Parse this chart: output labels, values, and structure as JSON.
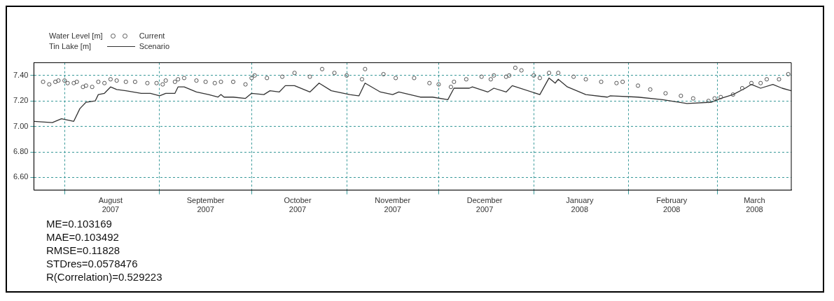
{
  "chart_data": {
    "type": "line",
    "legend_title": "Water Level [m]\nTin Lake [m]",
    "legend": "top left",
    "grid": true,
    "xlim": [
      "2007-07-22",
      "2008-03-25"
    ],
    "xticks": [
      {
        "value": "2007-08-01",
        "label": null
      },
      {
        "value": "2007-08-16",
        "label": "August 2007"
      },
      {
        "value": "2007-09-01",
        "label": null
      },
      {
        "value": "2007-09-16",
        "label": "September 2007"
      },
      {
        "value": "2007-10-01",
        "label": null
      },
      {
        "value": "2007-10-16",
        "label": "October 2007"
      },
      {
        "value": "2007-11-01",
        "label": null
      },
      {
        "value": "2007-11-16",
        "label": "November 2007"
      },
      {
        "value": "2007-12-01",
        "label": null
      },
      {
        "value": "2007-12-16",
        "label": "December 2007"
      },
      {
        "value": "2008-01-01",
        "label": null
      },
      {
        "value": "2008-01-16",
        "label": "January 2008"
      },
      {
        "value": "2008-02-01",
        "label": null
      },
      {
        "value": "2008-02-15",
        "label": "February 2008"
      },
      {
        "value": "2008-03-01",
        "label": null
      },
      {
        "value": "2008-03-13",
        "label": "March 2008"
      }
    ],
    "ylim": [
      6.5,
      7.5
    ],
    "yticks": [
      {
        "value": 6.6,
        "label": "6.60"
      },
      {
        "value": 6.8,
        "label": "6.80"
      },
      {
        "value": 7.0,
        "label": "7.00"
      },
      {
        "value": 7.2,
        "label": "7.20"
      },
      {
        "value": 7.4,
        "label": "7.40"
      }
    ],
    "series": [
      {
        "name": "Current",
        "type": "scatter",
        "marker": "circle",
        "color": "#555555",
        "x": [
          "2007-07-25",
          "2007-07-27",
          "2007-07-29",
          "2007-07-30",
          "2007-08-01",
          "2007-08-02",
          "2007-08-04",
          "2007-08-05",
          "2007-08-07",
          "2007-08-08",
          "2007-08-10",
          "2007-08-12",
          "2007-08-14",
          "2007-08-16",
          "2007-08-18",
          "2007-08-21",
          "2007-08-24",
          "2007-08-28",
          "2007-08-31",
          "2007-09-02",
          "2007-09-03",
          "2007-09-06",
          "2007-09-07",
          "2007-09-09",
          "2007-09-13",
          "2007-09-16",
          "2007-09-19",
          "2007-09-21",
          "2007-09-25",
          "2007-09-29",
          "2007-10-01",
          "2007-10-02",
          "2007-10-06",
          "2007-10-11",
          "2007-10-15",
          "2007-10-20",
          "2007-10-24",
          "2007-10-28",
          "2007-11-01",
          "2007-11-06",
          "2007-11-07",
          "2007-11-13",
          "2007-11-17",
          "2007-11-23",
          "2007-11-28",
          "2007-12-01",
          "2007-12-05",
          "2007-12-06",
          "2007-12-10",
          "2007-12-15",
          "2007-12-18",
          "2007-12-19",
          "2007-12-23",
          "2007-12-24",
          "2007-12-26",
          "2007-12-28",
          "2008-01-01",
          "2008-01-03",
          "2008-01-06",
          "2008-01-09",
          "2008-01-14",
          "2008-01-18",
          "2008-01-23",
          "2008-01-28",
          "2008-01-30",
          "2008-02-04",
          "2008-02-08",
          "2008-02-13",
          "2008-02-18",
          "2008-02-22",
          "2008-02-27",
          "2008-02-29",
          "2008-03-02",
          "2008-03-06",
          "2008-03-09",
          "2008-03-12",
          "2008-03-15",
          "2008-03-17",
          "2008-03-21",
          "2008-03-24"
        ],
        "values": [
          7.35,
          7.33,
          7.35,
          7.36,
          7.36,
          7.34,
          7.34,
          7.35,
          7.31,
          7.32,
          7.31,
          7.35,
          7.34,
          7.37,
          7.36,
          7.35,
          7.35,
          7.34,
          7.34,
          7.33,
          7.36,
          7.35,
          7.37,
          7.38,
          7.36,
          7.35,
          7.34,
          7.35,
          7.35,
          7.33,
          7.38,
          7.4,
          7.38,
          7.39,
          7.42,
          7.39,
          7.45,
          7.42,
          7.4,
          7.37,
          7.45,
          7.41,
          7.38,
          7.38,
          7.34,
          7.33,
          7.31,
          7.35,
          7.37,
          7.39,
          7.37,
          7.4,
          7.39,
          7.4,
          7.46,
          7.44,
          7.4,
          7.38,
          7.42,
          7.42,
          7.39,
          7.37,
          7.35,
          7.34,
          7.35,
          7.32,
          7.29,
          7.26,
          7.24,
          7.22,
          7.2,
          7.22,
          7.23,
          7.25,
          7.3,
          7.34,
          7.34,
          7.37,
          7.37,
          7.41
        ]
      },
      {
        "name": "Scenario",
        "type": "line",
        "line_style": "solid",
        "color": "#333333",
        "x": [
          "2007-07-22",
          "2007-07-28",
          "2007-07-31",
          "2007-08-04",
          "2007-08-06",
          "2007-08-08",
          "2007-08-11",
          "2007-08-12",
          "2007-08-14",
          "2007-08-16",
          "2007-08-18",
          "2007-08-21",
          "2007-08-26",
          "2007-08-29",
          "2007-09-01",
          "2007-09-03",
          "2007-09-06",
          "2007-09-07",
          "2007-09-09",
          "2007-09-13",
          "2007-09-17",
          "2007-09-20",
          "2007-09-21",
          "2007-09-22",
          "2007-09-25",
          "2007-09-29",
          "2007-10-01",
          "2007-10-05",
          "2007-10-07",
          "2007-10-10",
          "2007-10-12",
          "2007-10-15",
          "2007-10-20",
          "2007-10-23",
          "2007-10-27",
          "2007-11-02",
          "2007-11-05",
          "2007-11-07",
          "2007-11-12",
          "2007-11-16",
          "2007-11-18",
          "2007-11-25",
          "2007-11-29",
          "2007-12-04",
          "2007-12-06",
          "2007-12-11",
          "2007-12-12",
          "2007-12-17",
          "2007-12-19",
          "2007-12-23",
          "2007-12-25",
          "2008-01-03",
          "2008-01-06",
          "2008-01-08",
          "2008-01-09",
          "2008-01-12",
          "2008-01-18",
          "2008-01-25",
          "2008-01-26",
          "2008-02-04",
          "2008-02-12",
          "2008-02-20",
          "2008-02-28",
          "2008-03-02",
          "2008-03-06",
          "2008-03-10",
          "2008-03-12",
          "2008-03-15",
          "2008-03-19",
          "2008-03-22",
          "2008-03-25"
        ],
        "values": [
          7.04,
          7.03,
          7.06,
          7.04,
          7.14,
          7.19,
          7.2,
          7.25,
          7.26,
          7.31,
          7.29,
          7.28,
          7.26,
          7.26,
          7.24,
          7.26,
          7.26,
          7.31,
          7.31,
          7.27,
          7.25,
          7.23,
          7.25,
          7.23,
          7.23,
          7.22,
          7.26,
          7.25,
          7.28,
          7.27,
          7.32,
          7.32,
          7.27,
          7.34,
          7.28,
          7.25,
          7.24,
          7.34,
          7.27,
          7.25,
          7.27,
          7.23,
          7.23,
          7.21,
          7.3,
          7.3,
          7.31,
          7.27,
          7.3,
          7.27,
          7.32,
          7.25,
          7.38,
          7.34,
          7.37,
          7.31,
          7.25,
          7.23,
          7.24,
          7.23,
          7.21,
          7.18,
          7.19,
          7.22,
          7.25,
          7.3,
          7.33,
          7.3,
          7.33,
          7.3,
          7.28
        ]
      }
    ],
    "annotations": [
      "ME=0.103169",
      "MAE=0.103492",
      "RMSE=0.11828",
      "STDres=0.0578476",
      "R(Correlation)=0.529223"
    ]
  }
}
